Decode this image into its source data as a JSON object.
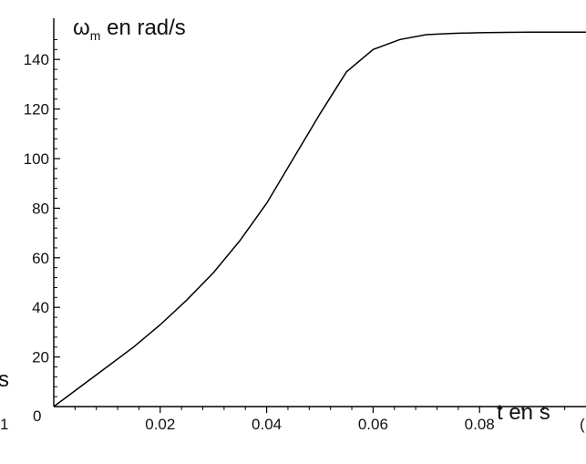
{
  "chart_data": {
    "type": "line",
    "title": "",
    "xlabel": "t en s",
    "ylabel_main": "ω",
    "ylabel_sub": "m",
    "ylabel_rest": " en rad/s",
    "xlim": [
      0,
      0.1
    ],
    "ylim": [
      0,
      150
    ],
    "x_ticks": [
      0.02,
      0.04,
      0.06,
      0.08
    ],
    "x_tick_labels": [
      "0.02",
      "0.04",
      "0.06",
      "0.08"
    ],
    "y_ticks": [
      20,
      40,
      60,
      80,
      100,
      120,
      140
    ],
    "y_tick_labels": [
      "20",
      "40",
      "60",
      "80",
      "100",
      "120",
      "140"
    ],
    "origin_label": "0",
    "edge_labels": {
      "left_s": "s",
      "bottom_left": "1",
      "bottom_right": "("
    },
    "grid": false,
    "series": [
      {
        "color": "#000000",
        "x": [
          0,
          0.005,
          0.01,
          0.015,
          0.02,
          0.025,
          0.03,
          0.035,
          0.04,
          0.045,
          0.05,
          0.055,
          0.06,
          0.065,
          0.07,
          0.075,
          0.08,
          0.085,
          0.09,
          0.095,
          0.1
        ],
        "y": [
          0,
          8,
          16,
          24,
          33,
          43,
          54,
          67,
          82,
          100,
          118,
          135,
          144,
          148,
          150,
          150.5,
          150.8,
          150.9,
          151,
          151,
          151
        ]
      }
    ]
  }
}
